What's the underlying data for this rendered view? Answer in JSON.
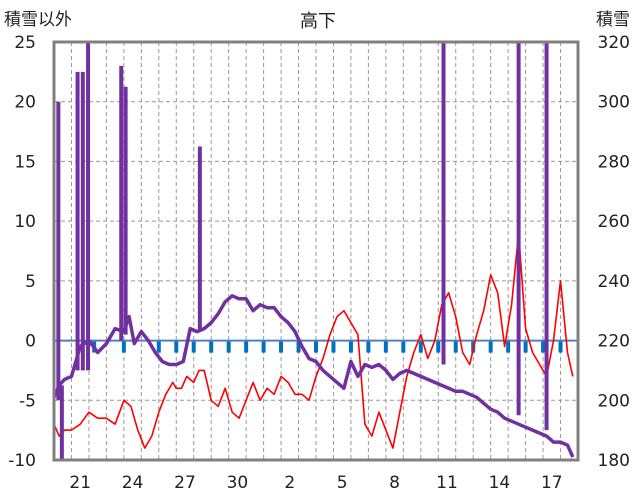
{
  "chart_data": {
    "type": "line",
    "title": "高下",
    "left_axis_label": "積雪以外",
    "right_axis_label": "積雪",
    "left_ylim": [
      -10,
      25
    ],
    "left_ticks": [
      25,
      20,
      15,
      10,
      5,
      0,
      -5,
      -10
    ],
    "right_ylim": [
      180,
      320
    ],
    "right_ticks": [
      320,
      300,
      280,
      260,
      240,
      220,
      200,
      180
    ],
    "x_ticks": [
      "21",
      "24",
      "27",
      "30",
      "2",
      "5",
      "8",
      "11",
      "14",
      "17"
    ],
    "x_tick_pos": [
      1.5,
      4.5,
      7.5,
      10.5,
      13.5,
      16.5,
      19.5,
      22.5,
      25.5,
      28.5
    ],
    "x_range": [
      0,
      30
    ],
    "grid": true,
    "colors": {
      "temperature": "#ff0000",
      "snow_depth": "#7030a0",
      "precip": "#0070c0",
      "frame": "#808080",
      "grid": "#999999"
    },
    "series": [
      {
        "axis": "left",
        "style": "red-line",
        "x": [
          0,
          0.3,
          0.6,
          1,
          1.5,
          2,
          2.5,
          3,
          3.5,
          4,
          4.4,
          4.8,
          5.2,
          5.6,
          6,
          6.4,
          6.8,
          7,
          7.3,
          7.6,
          8,
          8.3,
          8.6,
          9,
          9.4,
          9.8,
          10.2,
          10.6,
          11,
          11.4,
          11.8,
          12.2,
          12.6,
          13,
          13.4,
          13.8,
          14.2,
          14.6,
          15,
          15.4,
          15.8,
          16.2,
          16.6,
          17,
          17.4,
          17.8,
          18.2,
          18.6,
          19,
          19.4,
          19.8,
          20.2,
          20.6,
          21,
          21.4,
          21.8,
          22.2,
          22.6,
          23,
          23.4,
          23.8,
          24.2,
          24.6,
          25,
          25.4,
          25.8,
          26.2,
          26.6,
          27,
          27.4,
          27.8,
          28.2,
          28.6,
          29,
          29.4,
          29.7
        ],
        "y": [
          -7,
          -8,
          -7.5,
          -7.5,
          -7,
          -6,
          -6.5,
          -6.5,
          -7,
          -5,
          -5.5,
          -7.5,
          -9,
          -8,
          -6,
          -4.5,
          -3.5,
          -4,
          -4,
          -3,
          -3.5,
          -2.5,
          -2.5,
          -5,
          -5.5,
          -4,
          -6,
          -6.5,
          -5,
          -3.5,
          -5,
          -4,
          -4.5,
          -3,
          -3.5,
          -4.5,
          -4.5,
          -5,
          -3,
          -1.5,
          0.5,
          2,
          2.5,
          1.5,
          0.5,
          -7,
          -8,
          -6,
          -7.5,
          -9,
          -6,
          -3,
          -1,
          0.5,
          -1.5,
          0,
          3,
          4,
          2,
          -1,
          -2,
          0.5,
          2.5,
          5.5,
          4,
          -0.5,
          3,
          9,
          1,
          -1,
          -2,
          -3,
          0,
          5,
          -1,
          -3
        ]
      },
      {
        "axis": "right",
        "style": "purple-line",
        "x": [
          0,
          0.3,
          0.6,
          1,
          1.5,
          2,
          2.5,
          3,
          3.5,
          4,
          4.3,
          4.6,
          5,
          5.4,
          5.8,
          6.2,
          6.6,
          7,
          7.4,
          7.8,
          8.2,
          8.6,
          9,
          9.4,
          9.8,
          10.2,
          10.6,
          11,
          11.4,
          11.8,
          12.2,
          12.6,
          13,
          13.4,
          13.8,
          14.2,
          14.6,
          15,
          15.4,
          15.8,
          16.2,
          16.6,
          17,
          17.4,
          17.8,
          18.2,
          18.6,
          19,
          19.4,
          19.8,
          20.2,
          20.6,
          21,
          21.4,
          21.8,
          22.2,
          22.6,
          23,
          23.4,
          23.8,
          24.2,
          24.6,
          25,
          25.4,
          25.8,
          26.2,
          26.6,
          27,
          27.4,
          27.8,
          28.2,
          28.6,
          29,
          29.4,
          29.7
        ],
        "y": [
          201,
          205,
          207,
          208,
          218,
          220,
          216,
          219,
          224,
          223,
          228,
          219,
          223,
          220,
          216,
          213,
          212,
          212,
          213,
          224,
          223,
          224,
          226,
          229,
          233,
          235,
          234,
          234,
          230,
          232,
          231,
          231,
          228,
          226,
          223,
          218,
          214,
          213,
          210,
          208,
          206,
          204,
          213,
          208,
          212,
          211,
          212,
          210,
          207,
          209,
          210,
          209,
          208,
          207,
          206,
          205,
          204,
          203,
          203,
          202,
          201,
          199,
          197,
          196,
          194,
          193,
          192,
          191,
          190,
          189,
          188,
          186,
          186,
          185,
          181
        ]
      }
    ],
    "spikes": [
      {
        "x": 0.25,
        "from": 200,
        "to": 300
      },
      {
        "x": 0.45,
        "from": 205,
        "to": 180
      },
      {
        "x": 1.35,
        "from": 210,
        "to": 310
      },
      {
        "x": 1.65,
        "from": 210,
        "to": 310
      },
      {
        "x": 1.95,
        "from": 210,
        "to": 320
      },
      {
        "x": 3.85,
        "from": 220,
        "to": 312
      },
      {
        "x": 4.1,
        "from": 222,
        "to": 305
      },
      {
        "x": 8.35,
        "from": 223,
        "to": 285
      },
      {
        "x": 22.3,
        "from": 212,
        "to": 320
      },
      {
        "x": 26.6,
        "from": 195,
        "to": 320
      },
      {
        "x": 28.2,
        "from": 190,
        "to": 320
      }
    ],
    "precip_marks_x": [
      2.3,
      4.0,
      6.0,
      7.0,
      8.0,
      9.0,
      10.0,
      11.0,
      12.0,
      13.0,
      14.0,
      15.0,
      16.0,
      17.0,
      18.0,
      19.0,
      20.0,
      21.0,
      22.0,
      23.0,
      24.0,
      25.0,
      26.0,
      27.0,
      28.0,
      29.0
    ]
  }
}
